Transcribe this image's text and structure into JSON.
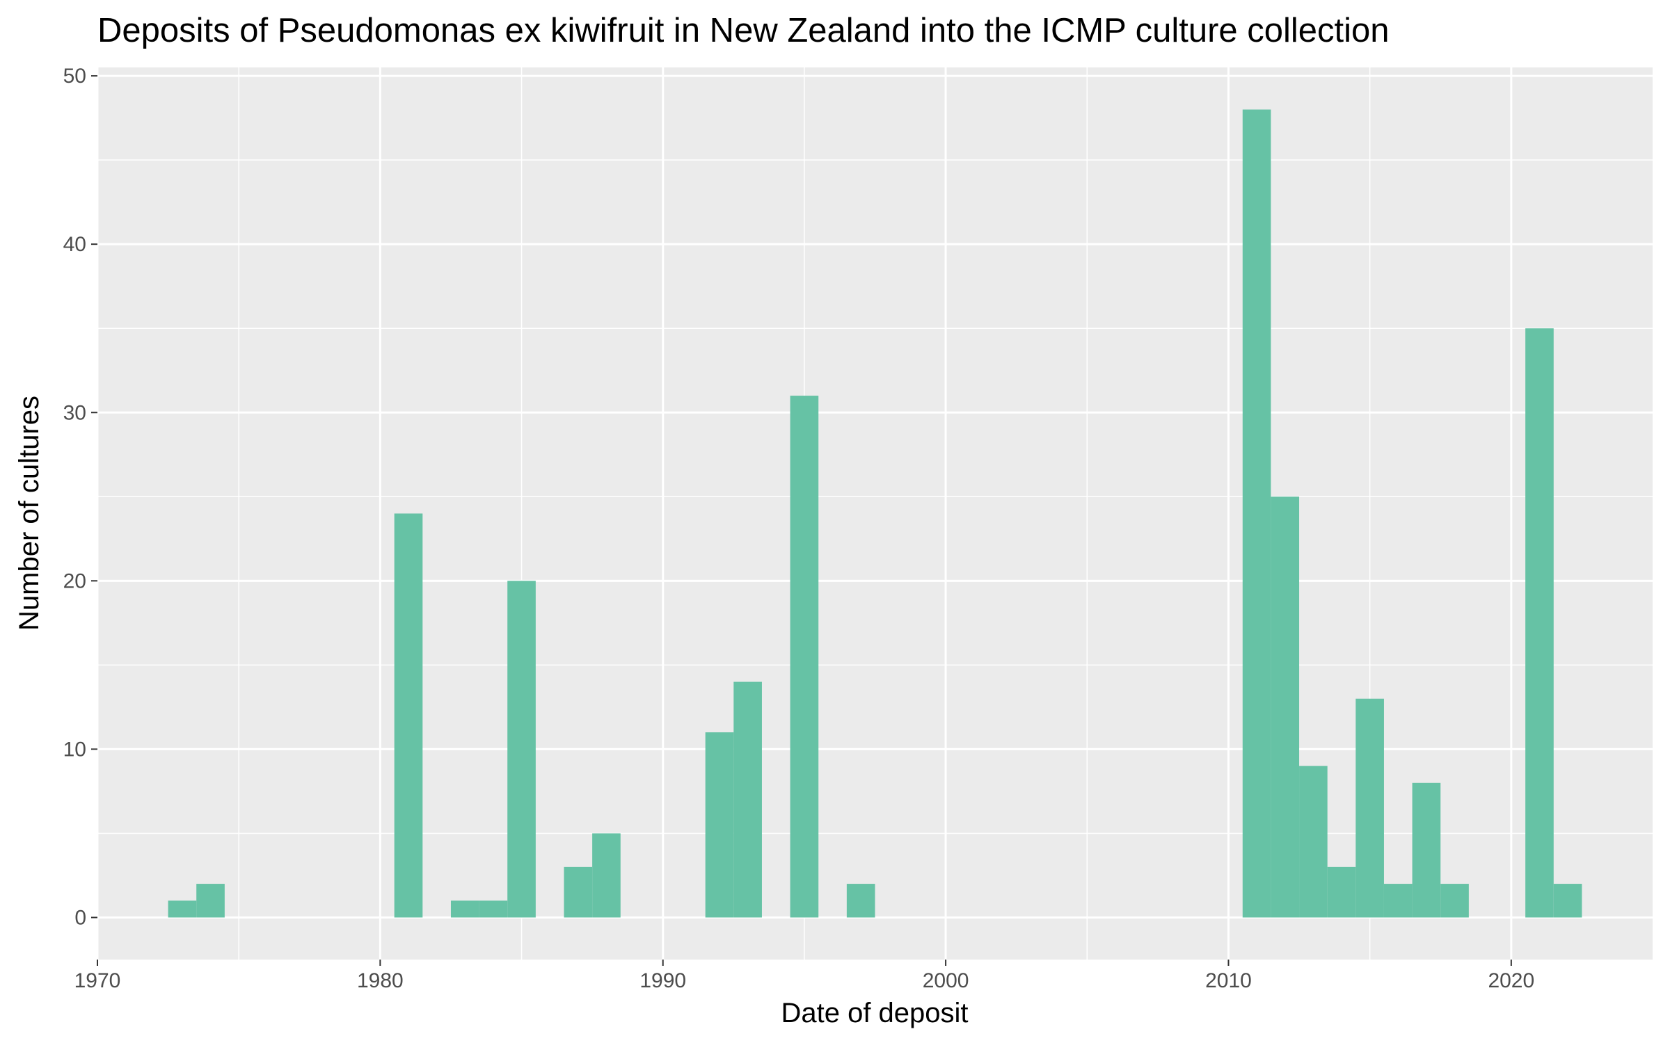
{
  "chart_data": {
    "type": "bar",
    "title": "Deposits of Pseudomonas ex kiwifruit in New Zealand into the ICMP culture collection",
    "xlabel": "Date of deposit",
    "ylabel": "Number of cultures",
    "xlim": [
      1970,
      2025
    ],
    "ylim": [
      -2.5,
      50.5
    ],
    "bin_width": 1,
    "x_ticks": [
      1970,
      1980,
      1990,
      2000,
      2010,
      2020
    ],
    "y_ticks": [
      0,
      10,
      20,
      30,
      40,
      50
    ],
    "grid": true,
    "legend": "none",
    "colors": {
      "bar": "#66c2a5",
      "panel": "#ebebeb",
      "grid": "#ffffff",
      "tick_text": "#4d4d4d",
      "tick_line": "#333333"
    },
    "bins": [
      {
        "x": 1973,
        "count": 1
      },
      {
        "x": 1974,
        "count": 2
      },
      {
        "x": 1981,
        "count": 24
      },
      {
        "x": 1983,
        "count": 1
      },
      {
        "x": 1984,
        "count": 1
      },
      {
        "x": 1985,
        "count": 20
      },
      {
        "x": 1987,
        "count": 3
      },
      {
        "x": 1988,
        "count": 5
      },
      {
        "x": 1992,
        "count": 11
      },
      {
        "x": 1993,
        "count": 14
      },
      {
        "x": 1995,
        "count": 31
      },
      {
        "x": 1997,
        "count": 2
      },
      {
        "x": 2011,
        "count": 48
      },
      {
        "x": 2012,
        "count": 25
      },
      {
        "x": 2013,
        "count": 9
      },
      {
        "x": 2014,
        "count": 3
      },
      {
        "x": 2015,
        "count": 13
      },
      {
        "x": 2016,
        "count": 2
      },
      {
        "x": 2017,
        "count": 8
      },
      {
        "x": 2018,
        "count": 2
      },
      {
        "x": 2021,
        "count": 35
      },
      {
        "x": 2022,
        "count": 2
      }
    ]
  }
}
